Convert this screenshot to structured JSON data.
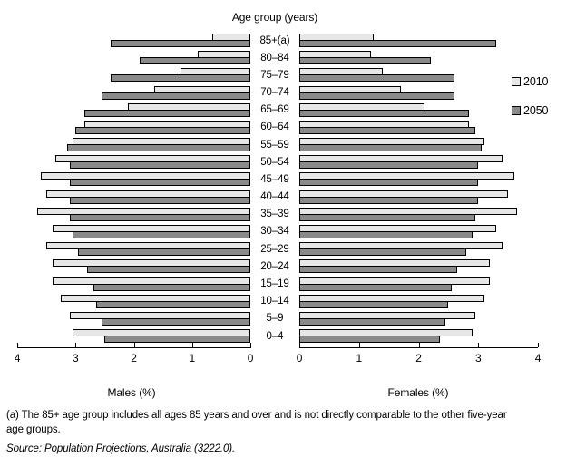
{
  "title": "Age group (years)",
  "legend": [
    {
      "label": "2010",
      "color": "#e7e7e7"
    },
    {
      "label": "2050",
      "color": "#8a8a8a"
    }
  ],
  "axes": {
    "male": {
      "label": "Males (%)",
      "ticks": [
        "4",
        "3",
        "2",
        "1",
        "0"
      ]
    },
    "female": {
      "label": "Females (%)",
      "ticks": [
        "0",
        "1",
        "2",
        "3",
        "4"
      ]
    }
  },
  "footnote_line1": "(a) The 85+ age group includes all ages 85 years and over and is not directly comparable to the other five-year",
  "footnote_line2": "age groups.",
  "source": "Source: Population Projections, Australia (3222.0).",
  "chart_data": {
    "type": "bar",
    "subtype": "population-pyramid",
    "title": "Age group (years)",
    "xlabel_left": "Males (%)",
    "xlabel_right": "Females (%)",
    "xlim_each_side": [
      0,
      4
    ],
    "grid": false,
    "legend_position": "right",
    "categories_top_to_bottom": [
      "85+(a)",
      "80–84",
      "75–79",
      "70–74",
      "65–69",
      "60–64",
      "55–59",
      "50–54",
      "45–49",
      "40–44",
      "35–39",
      "30–34",
      "25–29",
      "20–24",
      "15–19",
      "10–14",
      "5–9",
      "0–4"
    ],
    "series": [
      {
        "name": "2010",
        "side": "male",
        "color": "#e7e7e7",
        "values": [
          0.65,
          0.9,
          1.2,
          1.65,
          2.1,
          2.85,
          3.05,
          3.35,
          3.6,
          3.5,
          3.65,
          3.4,
          3.5,
          3.4,
          3.4,
          3.25,
          3.1,
          3.05
        ]
      },
      {
        "name": "2050",
        "side": "male",
        "color": "#8a8a8a",
        "values": [
          2.4,
          1.9,
          2.4,
          2.55,
          2.85,
          3.0,
          3.15,
          3.1,
          3.1,
          3.1,
          3.1,
          3.05,
          2.95,
          2.8,
          2.7,
          2.65,
          2.55,
          2.5
        ]
      },
      {
        "name": "2010",
        "side": "female",
        "color": "#e7e7e7",
        "values": [
          1.25,
          1.2,
          1.4,
          1.7,
          2.1,
          2.85,
          3.1,
          3.4,
          3.6,
          3.5,
          3.65,
          3.3,
          3.4,
          3.2,
          3.2,
          3.1,
          2.95,
          2.9
        ]
      },
      {
        "name": "2050",
        "side": "female",
        "color": "#8a8a8a",
        "values": [
          3.3,
          2.2,
          2.6,
          2.6,
          2.85,
          2.95,
          3.05,
          3.0,
          3.0,
          3.0,
          2.95,
          2.9,
          2.8,
          2.65,
          2.55,
          2.5,
          2.45,
          2.35
        ]
      }
    ]
  }
}
